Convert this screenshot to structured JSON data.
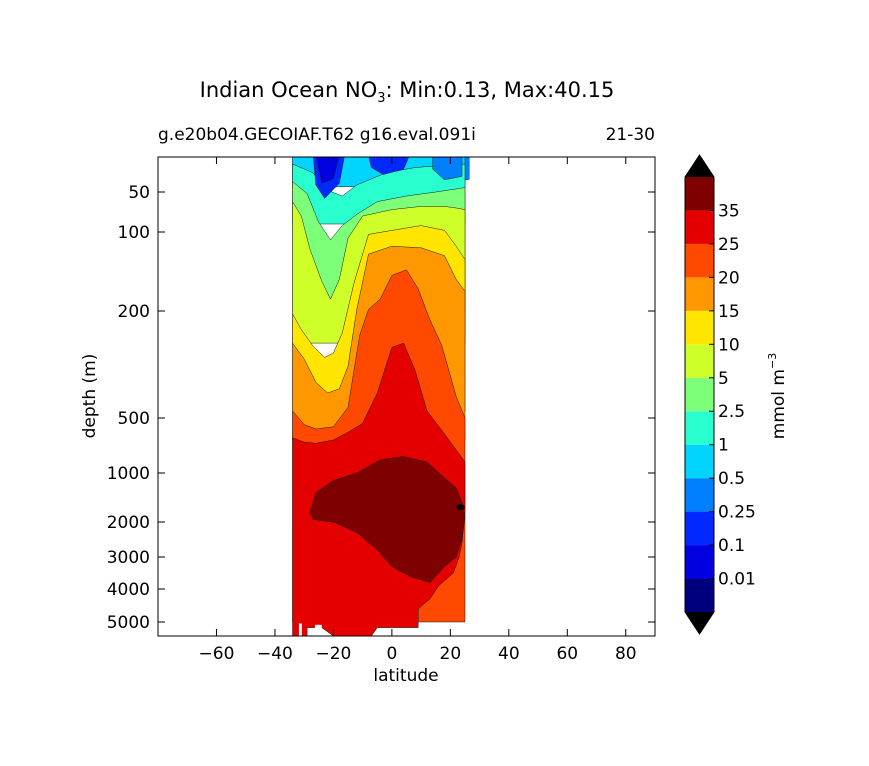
{
  "chart_data": {
    "type": "heatmap",
    "title_main": "Indian Ocean NO",
    "title_sub": "3",
    "title_rest": ": Min:0.13, Max:40.15",
    "subtitle_left": "g.e20b04.GECOIAF.T62 g16.eval.091i",
    "subtitle_right": "21-30",
    "xlabel": "latitude",
    "ylabel": "depth (m)",
    "xlim": [
      -80,
      90
    ],
    "x_ticks": [
      -60,
      -40,
      -20,
      0,
      20,
      40,
      60,
      80
    ],
    "y_scale": "custom stretched depth",
    "y_ticks": [
      50,
      100,
      200,
      500,
      1000,
      2000,
      3000,
      4000,
      5000
    ],
    "data_lat_range": [
      -34,
      26
    ],
    "colorbar": {
      "label": "mmol m",
      "label_exp": "−3",
      "levels": [
        "0.01",
        "0.1",
        "0.25",
        "0.5",
        "1",
        "2.5",
        "5",
        "10",
        "15",
        "20",
        "25",
        "35"
      ],
      "colors": [
        "#00007f",
        "#0000e0",
        "#0028ff",
        "#0080ff",
        "#00d4ff",
        "#29ffce",
        "#7dff7a",
        "#ceff29",
        "#ffe500",
        "#ff9700",
        "#ff4800",
        "#e50000",
        "#7f0000"
      ],
      "extend": "both"
    },
    "contour_bands": [
      {
        "min": "35",
        "color": "#7f0000",
        "region": "deep core 1000-4000 m, 24S-22N"
      },
      {
        "min": "25",
        "color": "#e50000",
        "region": "500-5000 m"
      },
      {
        "min": "20",
        "color": "#ff4800",
        "region": "200-1000 m"
      },
      {
        "min": "15",
        "color": "#ff9700",
        "region": "150-800 m"
      },
      {
        "min": "10",
        "color": "#ffe500",
        "region": "100-600 m"
      },
      {
        "min": "5",
        "color": "#ceff29",
        "region": "70-450 m"
      },
      {
        "min": "2.5",
        "color": "#7dff7a",
        "region": "40-300 m"
      },
      {
        "min": "1",
        "color": "#29ffce",
        "region": "20-200 m"
      },
      {
        "min": "0.5",
        "color": "#00d4ff",
        "region": "surface 0-60 m"
      },
      {
        "min": "0.25",
        "color": "#0080ff",
        "region": "surface patches"
      },
      {
        "min": "0.1",
        "color": "#0028ff",
        "region": "surface 20S-28S"
      }
    ]
  }
}
